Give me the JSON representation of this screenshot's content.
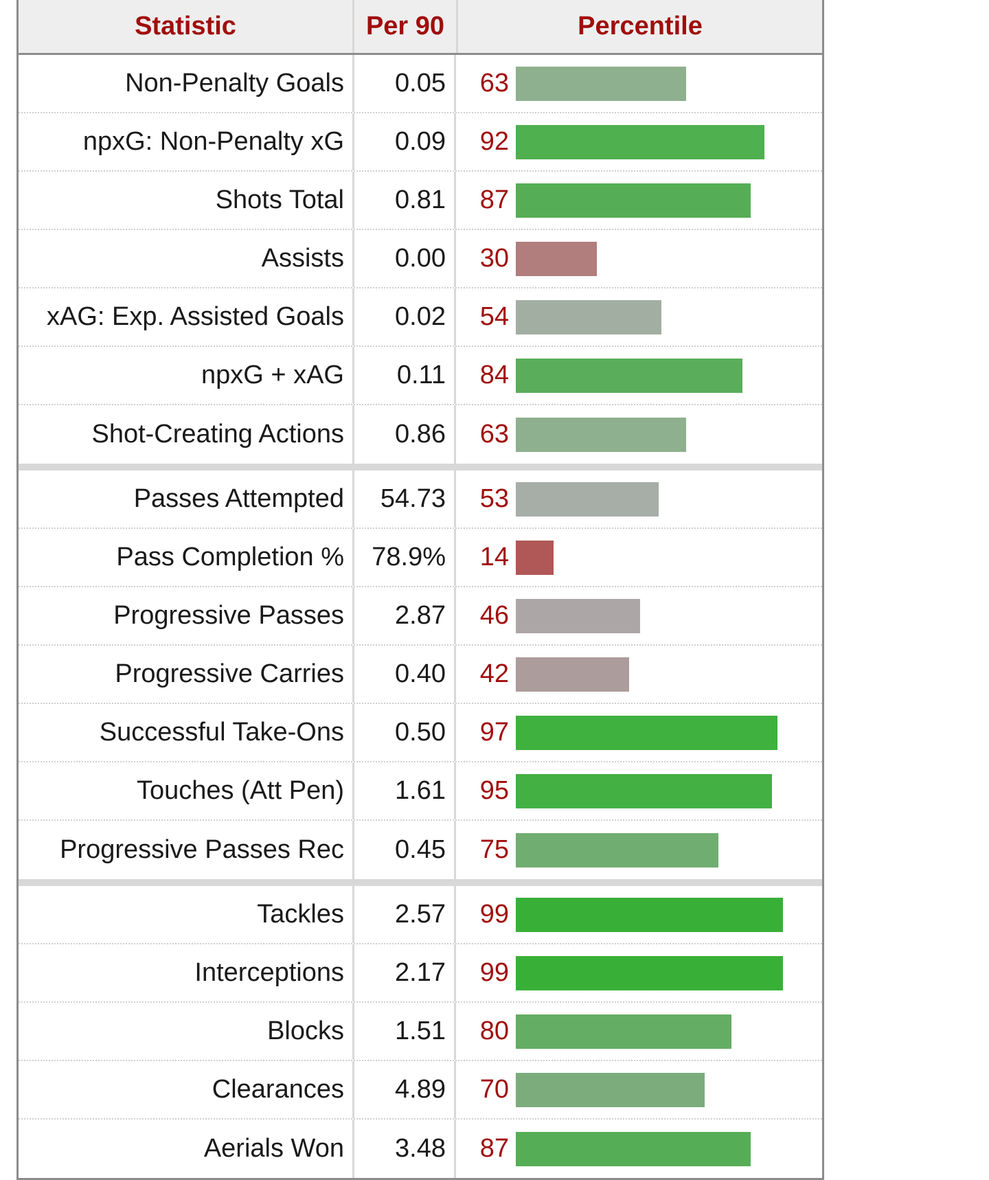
{
  "chart_data": {
    "type": "table",
    "columns": [
      "Statistic",
      "Per 90",
      "Percentile"
    ],
    "groups": [
      [
        {
          "stat": "Non-Penalty Goals",
          "per90": "0.05",
          "percentile": 63,
          "color": "#8fb08f"
        },
        {
          "stat": "npxG: Non-Penalty xG",
          "per90": "0.09",
          "percentile": 92,
          "color": "#4eb04e"
        },
        {
          "stat": "Shots Total",
          "per90": "0.81",
          "percentile": 87,
          "color": "#55ae55"
        },
        {
          "stat": "Assists",
          "per90": "0.00",
          "percentile": 30,
          "color": "#b17d7d"
        },
        {
          "stat": "xAG: Exp. Assisted Goals",
          "per90": "0.02",
          "percentile": 54,
          "color": "#a3aea3"
        },
        {
          "stat": "npxG + xAG",
          "per90": "0.11",
          "percentile": 84,
          "color": "#5aad5a"
        },
        {
          "stat": "Shot-Creating Actions",
          "per90": "0.86",
          "percentile": 63,
          "color": "#8fb08f"
        }
      ],
      [
        {
          "stat": "Passes Attempted",
          "per90": "54.73",
          "percentile": 53,
          "color": "#a7ada7"
        },
        {
          "stat": "Pass Completion %",
          "per90": "78.9%",
          "percentile": 14,
          "color": "#b05757"
        },
        {
          "stat": "Progressive Passes",
          "per90": "2.87",
          "percentile": 46,
          "color": "#ada6a6"
        },
        {
          "stat": "Progressive Carries",
          "per90": "0.40",
          "percentile": 42,
          "color": "#ad9c9c"
        },
        {
          "stat": "Successful Take-Ons",
          "per90": "0.50",
          "percentile": 97,
          "color": "#3fb13f"
        },
        {
          "stat": "Touches (Att Pen)",
          "per90": "1.61",
          "percentile": 95,
          "color": "#43b043"
        },
        {
          "stat": "Progressive Passes Rec",
          "per90": "0.45",
          "percentile": 75,
          "color": "#70ad70"
        }
      ],
      [
        {
          "stat": "Tackles",
          "per90": "2.57",
          "percentile": 99,
          "color": "#38b038"
        },
        {
          "stat": "Interceptions",
          "per90": "2.17",
          "percentile": 99,
          "color": "#38b038"
        },
        {
          "stat": "Blocks",
          "per90": "1.51",
          "percentile": 80,
          "color": "#64ad64"
        },
        {
          "stat": "Clearances",
          "per90": "4.89",
          "percentile": 70,
          "color": "#7cac7c"
        },
        {
          "stat": "Aerials Won",
          "per90": "3.48",
          "percentile": 87,
          "color": "#55ae55"
        }
      ]
    ],
    "xlim": [
      0,
      100
    ]
  }
}
